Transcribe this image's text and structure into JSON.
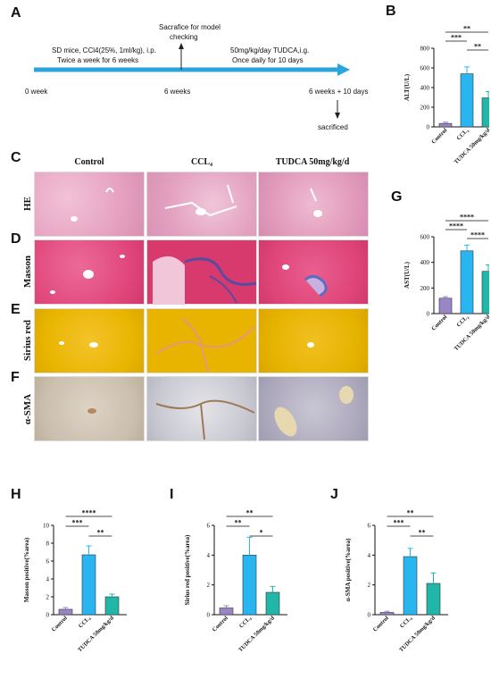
{
  "panels": {
    "a": "A",
    "b": "B",
    "c": "C",
    "d": "D",
    "e": "E",
    "f": "F",
    "g": "G",
    "h": "H",
    "i": "I",
    "j": "J"
  },
  "timeline": {
    "start": "0 week",
    "mid": "6 weeks",
    "end": "6 weeks + 10 days",
    "left_text_1": "SD mice, CCl4(25%, 1ml/kg), i.p.",
    "left_text_2": "Twice a week for 6 weeks",
    "checkpoint_1": "Sacrafice for model",
    "checkpoint_2": "checking",
    "right_text_1": "50mg/kg/day TUDCA,i.g.",
    "right_text_2": "Once daily for 10 days",
    "sacrificed": "sacrificed",
    "color": "#2aa4dc"
  },
  "micrographs": {
    "columns": [
      "Control",
      "CCL₄",
      "TUDCA 50mg/kg/d"
    ],
    "rows": [
      "HE",
      "Masson",
      "Sirius red",
      "α-SMA"
    ],
    "row_colors": [
      "#e6a3c2",
      "#e0457a",
      "#e6b400",
      "#c7bcae"
    ]
  },
  "colors": {
    "control": "#9b86c5",
    "ccl4": "#29b6f0",
    "tudca": "#20b7a8"
  },
  "chart_data": [
    {
      "id": "B",
      "type": "bar",
      "categories": [
        "Control",
        "CCL₄",
        "TUDCA 50mg/kg/d"
      ],
      "values": [
        35,
        540,
        295
      ],
      "errors": [
        12,
        70,
        65
      ],
      "ylabel": "ALT(U/L)",
      "ylim": [
        0,
        800
      ],
      "yticks": [
        0,
        200,
        400,
        600,
        800
      ],
      "significance": [
        {
          "from": 0,
          "to": 2,
          "label": "**"
        },
        {
          "from": 0,
          "to": 1,
          "label": "***"
        },
        {
          "from": 1,
          "to": 2,
          "label": "**"
        }
      ]
    },
    {
      "id": "G",
      "type": "bar",
      "categories": [
        "Control",
        "CCL₄",
        "TUDCA 50mg/kg/d"
      ],
      "values": [
        120,
        490,
        330
      ],
      "errors": [
        12,
        45,
        50
      ],
      "ylabel": "AST(U/L)",
      "ylim": [
        0,
        600
      ],
      "yticks": [
        0,
        200,
        400,
        600
      ],
      "significance": [
        {
          "from": 0,
          "to": 2,
          "label": "****"
        },
        {
          "from": 0,
          "to": 1,
          "label": "****"
        },
        {
          "from": 1,
          "to": 2,
          "label": "****"
        }
      ]
    },
    {
      "id": "H",
      "type": "bar",
      "categories": [
        "Control",
        "CCL₄",
        "TUDCA 50mg/kg/d"
      ],
      "values": [
        0.6,
        6.7,
        2.0
      ],
      "errors": [
        0.2,
        1.0,
        0.3
      ],
      "ylabel": "Masson positive(%area)",
      "ylim": [
        0,
        10
      ],
      "yticks": [
        0,
        2,
        4,
        6,
        8,
        10
      ],
      "significance": [
        {
          "from": 0,
          "to": 2,
          "label": "****"
        },
        {
          "from": 0,
          "to": 1,
          "label": "***"
        },
        {
          "from": 1,
          "to": 2,
          "label": "**"
        }
      ]
    },
    {
      "id": "I",
      "type": "bar",
      "categories": [
        "Control",
        "CCL₄",
        "TUDCA 50mg/kg/d"
      ],
      "values": [
        0.45,
        4.0,
        1.5
      ],
      "errors": [
        0.15,
        1.2,
        0.4
      ],
      "ylabel": "Sirius red positive(%area)",
      "ylim": [
        0,
        6
      ],
      "yticks": [
        0,
        2,
        4,
        6
      ],
      "significance": [
        {
          "from": 0,
          "to": 2,
          "label": "**"
        },
        {
          "from": 0,
          "to": 1,
          "label": "**"
        },
        {
          "from": 1,
          "to": 2,
          "label": "*"
        }
      ]
    },
    {
      "id": "J",
      "type": "bar",
      "categories": [
        "Control",
        "CCL₄",
        "TUDCA 50mg/kg/d"
      ],
      "values": [
        0.15,
        3.9,
        2.1
      ],
      "errors": [
        0.08,
        0.55,
        0.7
      ],
      "ylabel": "α-SMA positive(%area)",
      "ylim": [
        0,
        6
      ],
      "yticks": [
        0,
        2,
        4,
        6
      ],
      "significance": [
        {
          "from": 0,
          "to": 2,
          "label": "**"
        },
        {
          "from": 0,
          "to": 1,
          "label": "***"
        },
        {
          "from": 1,
          "to": 2,
          "label": "**"
        }
      ]
    }
  ]
}
